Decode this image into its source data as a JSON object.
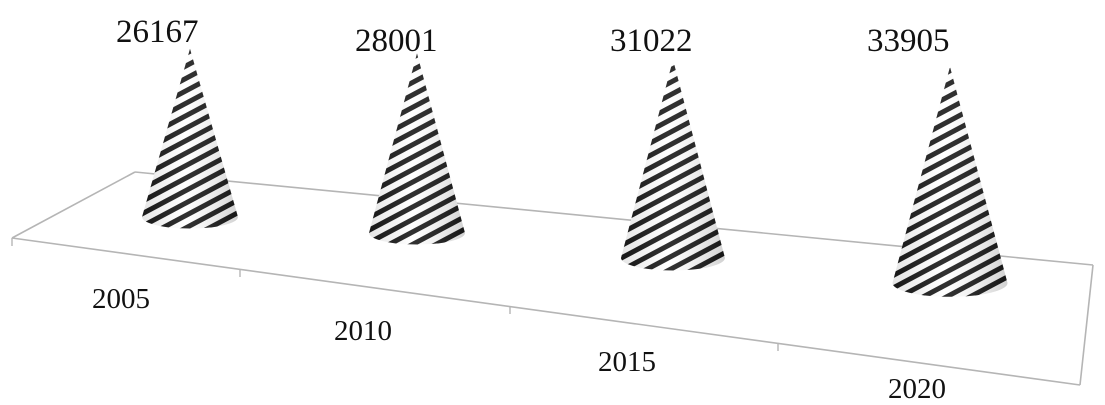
{
  "chart_data": {
    "type": "bar",
    "style": "3d-cone",
    "categories": [
      "2005",
      "2010",
      "2015",
      "2020"
    ],
    "values": [
      26167,
      28001,
      31022,
      33905
    ],
    "data_labels": [
      "26167",
      "28001",
      "31022",
      "33905"
    ],
    "title": "",
    "xlabel": "",
    "ylabel": "",
    "grid": false,
    "legend": "none",
    "colors": {
      "cone_dark": "#1a1a1a",
      "cone_light": "#ffffff",
      "floor": "#b5b5b5",
      "text": "#111111"
    }
  }
}
